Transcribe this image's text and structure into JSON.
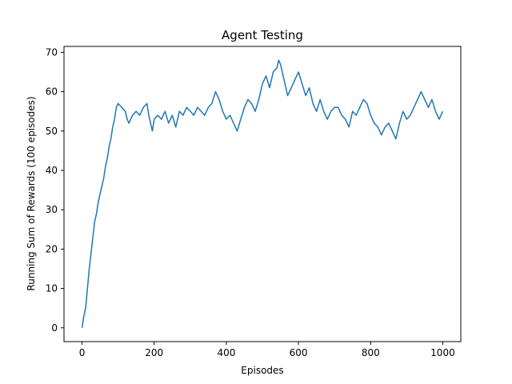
{
  "chart_data": {
    "type": "line",
    "title": "Agent Testing",
    "xlabel": "Episodes",
    "ylabel": "Running Sum of Rewards (100 episodes)",
    "xlim": [
      -50,
      1050
    ],
    "ylim": [
      -3.5,
      71.5
    ],
    "xticks": [
      0,
      200,
      400,
      600,
      800,
      1000
    ],
    "yticks": [
      0,
      10,
      20,
      30,
      40,
      50,
      60,
      70
    ],
    "grid": false,
    "series": [
      {
        "color": "#1f77b4",
        "points": [
          [
            0,
            0
          ],
          [
            5,
            3
          ],
          [
            10,
            5
          ],
          [
            15,
            10
          ],
          [
            20,
            15
          ],
          [
            25,
            19
          ],
          [
            30,
            23
          ],
          [
            35,
            27
          ],
          [
            40,
            29
          ],
          [
            45,
            32
          ],
          [
            50,
            34
          ],
          [
            55,
            36
          ],
          [
            60,
            38
          ],
          [
            65,
            41
          ],
          [
            70,
            43
          ],
          [
            75,
            46
          ],
          [
            80,
            48
          ],
          [
            85,
            51
          ],
          [
            90,
            53
          ],
          [
            95,
            56
          ],
          [
            100,
            57
          ],
          [
            110,
            56
          ],
          [
            120,
            55
          ],
          [
            125,
            53
          ],
          [
            130,
            52
          ],
          [
            140,
            54
          ],
          [
            150,
            55
          ],
          [
            160,
            54
          ],
          [
            170,
            56
          ],
          [
            180,
            57
          ],
          [
            185,
            54
          ],
          [
            190,
            52
          ],
          [
            195,
            50
          ],
          [
            200,
            53
          ],
          [
            210,
            54
          ],
          [
            220,
            53
          ],
          [
            230,
            55
          ],
          [
            240,
            52
          ],
          [
            250,
            54
          ],
          [
            260,
            51
          ],
          [
            270,
            55
          ],
          [
            280,
            54
          ],
          [
            290,
            56
          ],
          [
            300,
            55
          ],
          [
            310,
            54
          ],
          [
            320,
            56
          ],
          [
            330,
            55
          ],
          [
            340,
            54
          ],
          [
            350,
            56
          ],
          [
            360,
            57
          ],
          [
            370,
            60
          ],
          [
            380,
            58
          ],
          [
            390,
            55
          ],
          [
            400,
            53
          ],
          [
            410,
            54
          ],
          [
            420,
            52
          ],
          [
            430,
            50
          ],
          [
            440,
            53
          ],
          [
            450,
            56
          ],
          [
            460,
            58
          ],
          [
            470,
            57
          ],
          [
            480,
            55
          ],
          [
            490,
            58
          ],
          [
            500,
            62
          ],
          [
            510,
            64
          ],
          [
            520,
            61
          ],
          [
            530,
            65
          ],
          [
            540,
            66
          ],
          [
            545,
            68
          ],
          [
            550,
            67
          ],
          [
            560,
            63
          ],
          [
            570,
            59
          ],
          [
            580,
            61
          ],
          [
            590,
            63
          ],
          [
            600,
            65
          ],
          [
            610,
            62
          ],
          [
            620,
            59
          ],
          [
            630,
            61
          ],
          [
            640,
            57
          ],
          [
            650,
            55
          ],
          [
            660,
            58
          ],
          [
            670,
            55
          ],
          [
            680,
            53
          ],
          [
            690,
            55
          ],
          [
            700,
            56
          ],
          [
            710,
            56
          ],
          [
            720,
            54
          ],
          [
            730,
            53
          ],
          [
            740,
            51
          ],
          [
            750,
            55
          ],
          [
            760,
            54
          ],
          [
            770,
            56
          ],
          [
            780,
            58
          ],
          [
            790,
            57
          ],
          [
            800,
            54
          ],
          [
            810,
            52
          ],
          [
            820,
            51
          ],
          [
            830,
            49
          ],
          [
            840,
            51
          ],
          [
            850,
            52
          ],
          [
            860,
            50
          ],
          [
            870,
            48
          ],
          [
            880,
            52
          ],
          [
            890,
            55
          ],
          [
            900,
            53
          ],
          [
            910,
            54
          ],
          [
            920,
            56
          ],
          [
            930,
            58
          ],
          [
            940,
            60
          ],
          [
            950,
            58
          ],
          [
            960,
            56
          ],
          [
            970,
            58
          ],
          [
            980,
            55
          ],
          [
            990,
            53
          ],
          [
            1000,
            55
          ]
        ]
      }
    ]
  }
}
